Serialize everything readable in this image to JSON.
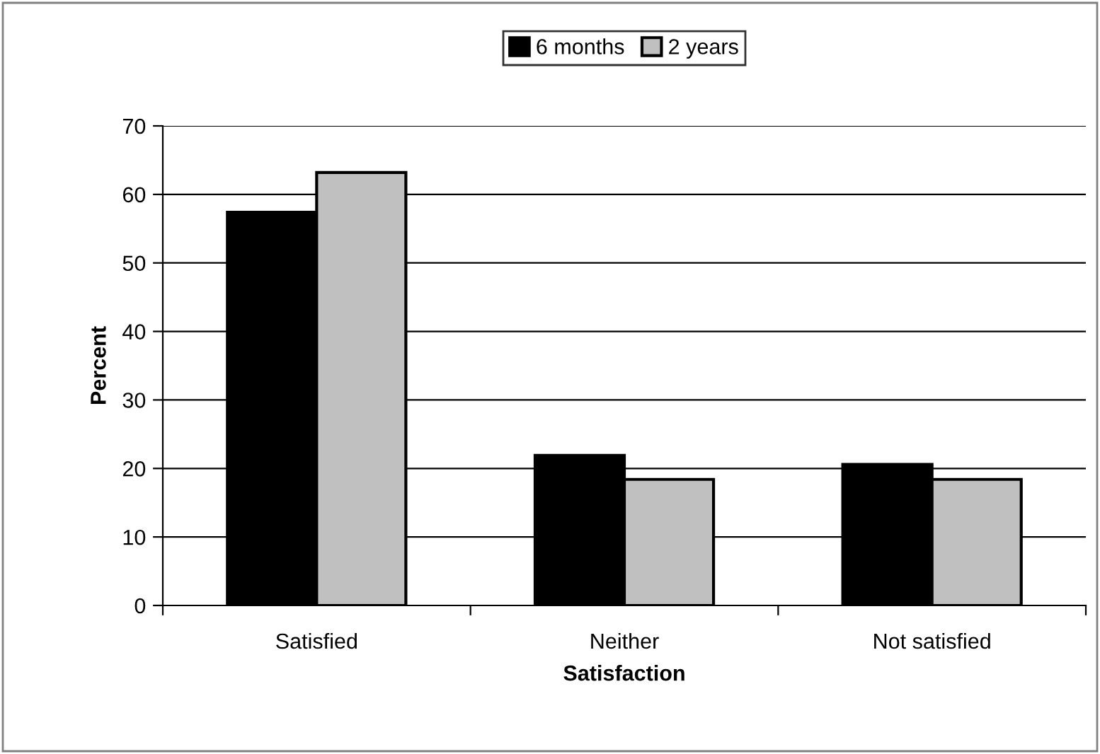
{
  "chart_data": {
    "type": "bar",
    "xlabel": "Satisfaction",
    "ylabel": "Percent",
    "categories": [
      "Satisfied",
      "Neither",
      "Not satisfied"
    ],
    "series": [
      {
        "name": "6 months",
        "color": "#000000",
        "values": [
          57.4,
          21.9,
          20.6
        ]
      },
      {
        "name": "2 years",
        "color": "#c0c0c0",
        "values": [
          63.2,
          18.4,
          18.4
        ]
      }
    ],
    "ylim": [
      0,
      70
    ],
    "yticks": [
      0,
      10,
      20,
      30,
      40,
      50,
      60,
      70
    ],
    "grid": "y",
    "legend": "top"
  }
}
